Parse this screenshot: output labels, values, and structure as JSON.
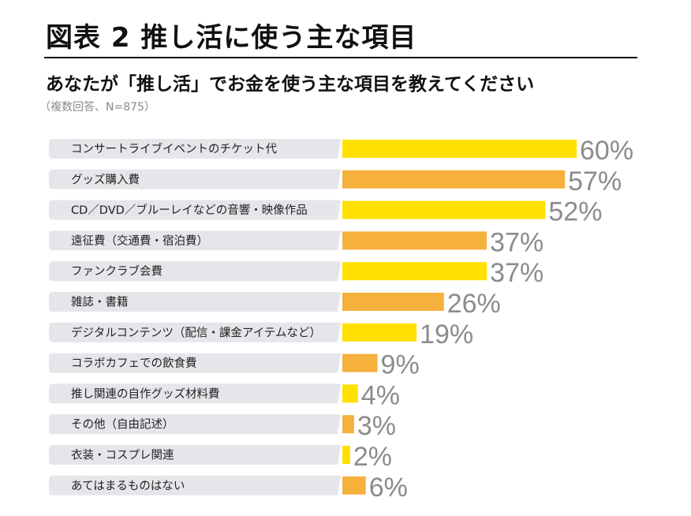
{
  "figure": {
    "title": "図表 2 推し活に使う主な項目",
    "question": "あなたが「推し活」でお金を使う主な項目を教えてください",
    "note": "（複数回答、N=875）"
  },
  "colors": {
    "bar_primary": "#ffe000",
    "bar_secondary": "#f6b03c",
    "label_box": "#e6e6ea",
    "value_text": "#8c8c8c"
  },
  "chart_data": {
    "type": "bar",
    "orientation": "horizontal",
    "title": "推し活に使う主な項目",
    "xlabel": "",
    "ylabel": "",
    "xlim": [
      0,
      60
    ],
    "unit": "%",
    "categories": [
      "コンサートライブイベントのチケット代",
      "グッズ購入費",
      "CD／DVD／ブルーレイなどの音響・映像作品",
      "遠征費（交通費・宿泊費）",
      "ファンクラブ会費",
      "雑誌・書籍",
      "デジタルコンテンツ（配信・課金アイテムなど）",
      "コラボカフェでの飲食費",
      "推し関連の自作グッズ材料費",
      "その他（自由記述）",
      "衣装・コスプレ関連",
      "あてはまるものはない"
    ],
    "values": [
      60,
      57,
      52,
      37,
      37,
      26,
      19,
      9,
      4,
      3,
      2,
      6
    ],
    "value_labels": [
      "60%",
      "57%",
      "52%",
      "37%",
      "37%",
      "26%",
      "19%",
      "9%",
      "4%",
      "3%",
      "2%",
      "6%"
    ]
  }
}
